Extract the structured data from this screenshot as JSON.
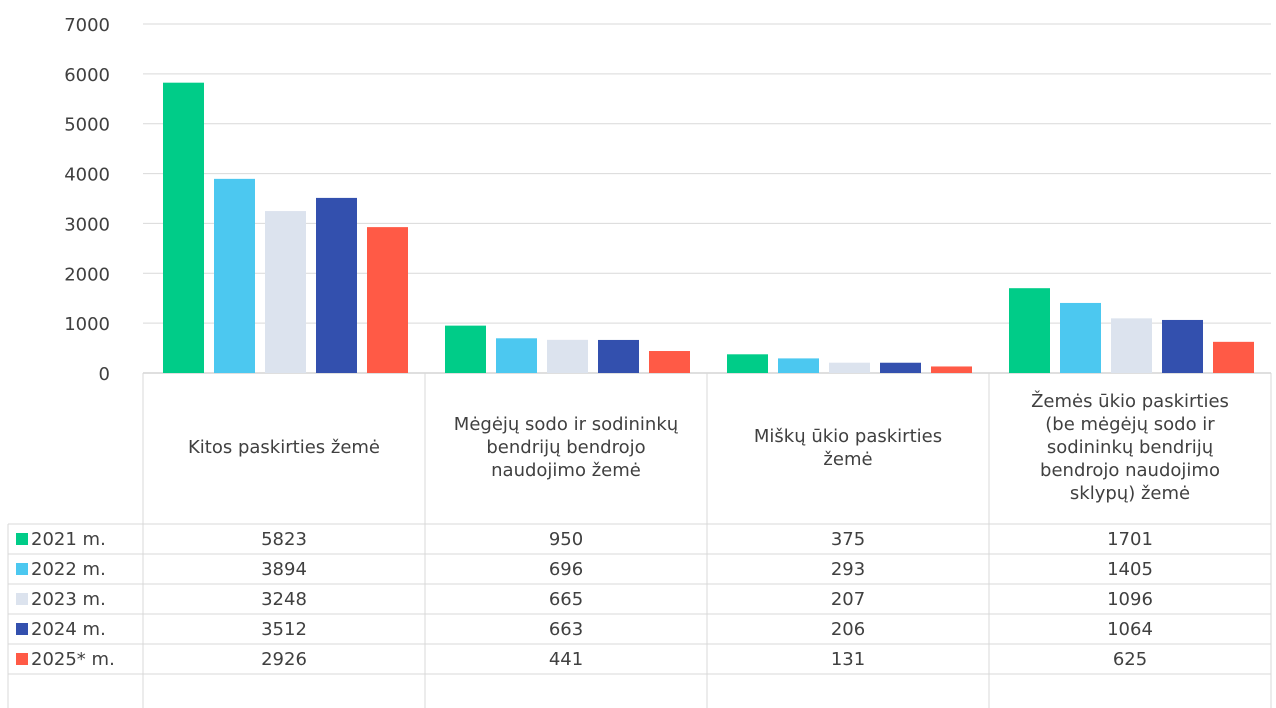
{
  "chart_data": {
    "type": "bar",
    "categories": [
      "Kitos paskirties žemė",
      "Mėgėjų sodo ir sodininkų bendrijų bendrojo naudojimo žemė",
      "Miškų ūkio paskirties žemė",
      "Žemės ūkio paskirties (be mėgėjų sodo ir sodininkų bendrijų bendrojo naudojimo sklypų) žemė"
    ],
    "category_lines": [
      [
        "Kitos paskirties žemė"
      ],
      [
        "Mėgėjų sodo ir sodininkų",
        "bendrijų bendrojo",
        "naudojimo žemė"
      ],
      [
        "Miškų ūkio paskirties",
        "žemė"
      ],
      [
        "Žemės ūkio paskirties",
        "(be mėgėjų sodo ir",
        "sodininkų bendrijų",
        "bendrojo naudojimo",
        "sklypų) žemė"
      ]
    ],
    "series": [
      {
        "name": "2021 m.",
        "color": "#00CC88",
        "values": [
          5823,
          950,
          375,
          1701
        ]
      },
      {
        "name": "2022 m.",
        "color": "#4CC8F0",
        "values": [
          3894,
          696,
          293,
          1405
        ]
      },
      {
        "name": "2023 m.",
        "color": "#DCE3EE",
        "values": [
          3248,
          665,
          207,
          1096
        ]
      },
      {
        "name": "2024 m.",
        "color": "#3350AE",
        "values": [
          3512,
          663,
          206,
          1064
        ]
      },
      {
        "name": "2025* m.",
        "color": "#FF5A46",
        "values": [
          2926,
          441,
          131,
          625
        ]
      }
    ],
    "ylim": [
      0,
      7000
    ],
    "yticks": [
      "0",
      "1000",
      "2000",
      "3000",
      "4000",
      "5000",
      "6000",
      "7000"
    ],
    "grid": true,
    "legend": "data-table"
  }
}
